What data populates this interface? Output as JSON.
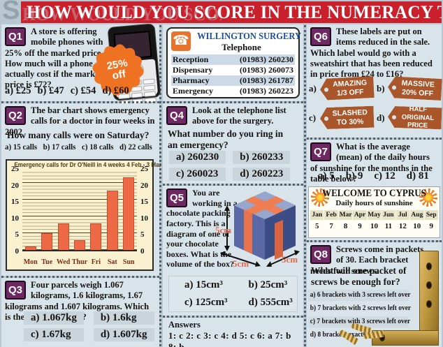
{
  "theme": {
    "banner_red": "#c9202c",
    "badge_purple": "#6e2963",
    "bar_orange": "#ee6a47",
    "tag_brown": "#a8562a",
    "panel_blue": "#d8e4ea",
    "highlight_blue": "#ccd9e6"
  },
  "header": {
    "watermark": "S",
    "title": "HOW WOULD YOU SCORE IN THE NUMERACY TEST?"
  },
  "questions": {
    "q1": {
      "badge": "Q1",
      "text": "A store is offering mobile phones with 25% off the marked price. How much will a phone actually cost if the marked price is £72?",
      "burst_line1": "25%",
      "burst_line2": "off",
      "options": [
        "a) £25",
        "b) £47",
        "c) £54",
        "d) £60"
      ]
    },
    "q2": {
      "badge": "Q2",
      "text": "The bar chart shows emergency calls for a doctor in four weeks in 2002",
      "prompt": "How many calls were on Saturday?",
      "options": [
        "a) 15 calls",
        "b) 17 calls",
        "c) 18 calls",
        "d) 22 calls"
      ]
    },
    "q3": {
      "badge": "Q3",
      "text": "Four parcels weigh 1.067 kilograms, 1.6 kilograms, 1.67 kilograms and 1.607 kilograms. Which is the heaviest parcel?",
      "options": [
        "a) 1.067kg",
        "b) 1.6kg",
        "c) 1.67kg",
        "d) 1.607kg"
      ]
    },
    "q4": {
      "badge": "Q4",
      "text": "Look at the telephone list above for the surgery.",
      "prompt": "What number do you ring in an emergency?",
      "options": [
        "a) 260230",
        "b) 260233",
        "c) 260023",
        "d) 260223"
      ]
    },
    "q5": {
      "badge": "Q5",
      "text": "You are working in a chocolate packing factory. This is a diagram of one of your chocolate boxes. What is the volume of the box?",
      "dim_left": "5cm",
      "dim_bottom": "5cm",
      "dim_right": "5cm",
      "options": [
        "a) 15cm³",
        "b) 25cm³",
        "c) 125cm³",
        "d) 555cm³"
      ]
    },
    "q6": {
      "badge": "Q6",
      "text": "These labels are put on items reduced in the sale. Which label would go with a sweatshirt that has been reduced in price from £24 to £16?",
      "tags": [
        {
          "key": "a)",
          "line1": "AMAZING",
          "line2": "1/3 OFF"
        },
        {
          "key": "b)",
          "line1": "MASSIVE",
          "line2": "20% OFF"
        },
        {
          "key": "c)",
          "line1": "SLASHED",
          "line2": "TO 30%"
        },
        {
          "key": "d)",
          "line1": "HALF ORIGINAL",
          "line2": "PRICE"
        }
      ]
    },
    "q7": {
      "badge": "Q7",
      "text": "What is the average (mean) of the daily hours of sunshine for the months in the table below?",
      "options": [
        "a) 5",
        "b) 9",
        "c) 12",
        "d) 81"
      ],
      "table": {
        "title": "WELCOME TO CYPRUS",
        "subtitle": "Daily hours of sunshine",
        "months": [
          "Jan",
          "Feb",
          "Mar",
          "Apr",
          "May",
          "Jun",
          "Jul",
          "Aug",
          "Sep"
        ],
        "values": [
          "5",
          "7",
          "8",
          "9",
          "10",
          "11",
          "12",
          "10",
          "9"
        ]
      }
    },
    "q8": {
      "badge": "Q8",
      "text": "Screws come in packets of 30. Each bracket needs four screws.",
      "prompt": "What will one packet of screws be enough for?",
      "options": [
        "a) 6 brackets with 3 screws left over",
        "b) 7 brackets with 2 screws left over",
        "c) 7 brackets with 3 screws left over",
        "d) 8 brackets exactly"
      ]
    }
  },
  "phone_list": {
    "title": "WILLINGTON SURGERY",
    "subtitle": "Telephone",
    "rows": [
      {
        "name": "Reception",
        "number": "(01983) 260230"
      },
      {
        "name": "Dispensary",
        "number": "(01983) 260073"
      },
      {
        "name": "Pharmacy",
        "number": "(01983) 261787"
      },
      {
        "name": "Emergency",
        "number": "(01983) 260223"
      }
    ]
  },
  "answer_key": {
    "title": "Answers",
    "values": "1: c  2: c  3: c  4: d  5: c  6: a  7: b  8: b"
  },
  "chart_data": {
    "type": "bar",
    "title": "Emergency calls for Dr O'Neill in 4 weeks 4 Feb - 3 Mar",
    "categories": [
      "Mon",
      "Tue",
      "Wed",
      "Thur",
      "Fri",
      "Sat",
      "Sun"
    ],
    "values": [
      1,
      5,
      8,
      3,
      8,
      18,
      22
    ],
    "ylim": [
      0,
      25
    ],
    "yticks": [
      0,
      5,
      10,
      15,
      20,
      25
    ],
    "grid": true,
    "xlabel": "",
    "ylabel": ""
  }
}
